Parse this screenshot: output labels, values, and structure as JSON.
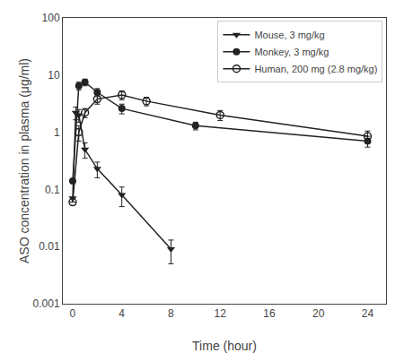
{
  "chart_data": {
    "type": "line",
    "xlabel": "Time (hour)",
    "ylabel": "ASO concentration in plasma (μg/ml)",
    "xlim": [
      -0.8,
      25.5
    ],
    "xticks": [
      0,
      4,
      8,
      12,
      16,
      20,
      24
    ],
    "ylim": [
      0.001,
      100
    ],
    "yticks": [
      0.001,
      0.01,
      0.1,
      1,
      10,
      100
    ],
    "log": "y",
    "grid": false,
    "legend": "upper right",
    "series": [
      {
        "name": "Mouse, 3 mg/kg",
        "color": "#222222",
        "marker": "triangle-down",
        "line_style": "solid",
        "x": [
          0.0,
          0.25,
          0.5,
          1.0,
          2.0,
          4.0,
          8.0
        ],
        "values": [
          0.07,
          2.2,
          2.0,
          0.5,
          0.23,
          0.08,
          0.009
        ],
        "yerr_lo": [
          0.0,
          0.55,
          0.5,
          0.15,
          0.07,
          0.03,
          0.004
        ],
        "yerr_hi": [
          0.0,
          0.55,
          0.5,
          0.15,
          0.07,
          0.03,
          0.004
        ]
      },
      {
        "name": "Monkey, 3 mg/kg",
        "color": "#222222",
        "marker": "circle",
        "line_style": "solid",
        "x": [
          0.0,
          0.5,
          1.0,
          2.0,
          4.0,
          10.0,
          24.0
        ],
        "values": [
          0.14,
          6.5,
          7.5,
          5.0,
          2.6,
          1.3,
          0.7
        ],
        "yerr_lo": [
          0.0,
          1.0,
          1.0,
          0.8,
          0.5,
          0.2,
          0.15
        ],
        "yerr_hi": [
          0.0,
          1.0,
          1.0,
          0.8,
          0.5,
          0.2,
          0.15
        ]
      },
      {
        "name": "Human, 200 mg (2.8 mg/kg)",
        "color": "#222222",
        "marker": "circle-open",
        "line_style": "solid",
        "x": [
          0.0,
          0.5,
          1.0,
          2.0,
          4.0,
          6.0,
          12.0,
          24.0
        ],
        "values": [
          0.06,
          1.0,
          2.2,
          3.8,
          4.5,
          3.5,
          2.0,
          0.85
        ],
        "yerr_lo": [
          0.0,
          0.3,
          0.4,
          0.7,
          0.8,
          0.6,
          0.4,
          0.2
        ],
        "yerr_hi": [
          0.0,
          0.3,
          0.4,
          0.7,
          0.8,
          0.6,
          0.4,
          0.2
        ]
      }
    ]
  }
}
